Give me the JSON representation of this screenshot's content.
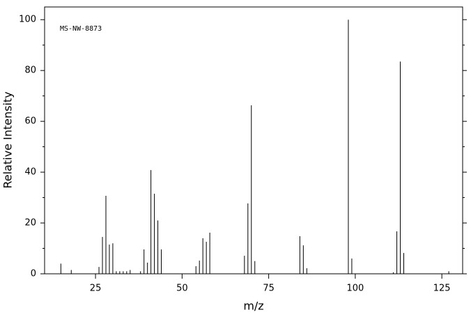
{
  "chart_data": {
    "type": "stem",
    "annotation": "MS-NW-8873",
    "x_label": "m/z",
    "y_label": "Relative Intensity",
    "x": [
      15,
      18,
      26,
      27,
      28,
      29,
      30,
      31,
      32,
      33,
      34,
      35,
      38,
      39,
      40,
      41,
      42,
      43,
      44,
      54,
      55,
      56,
      57,
      58,
      68,
      69,
      70,
      71,
      84,
      85,
      86,
      98,
      99,
      111,
      112,
      113,
      114,
      127
    ],
    "values": [
      4,
      1.5,
      2.7,
      14.5,
      30.7,
      11.5,
      12,
      1,
      1,
      1,
      1,
      1.5,
      1,
      9.6,
      4.4,
      40.8,
      31.5,
      21,
      9.6,
      3,
      5.2,
      14,
      12.6,
      16.2,
      7.1,
      27.7,
      66.3,
      5,
      14.8,
      11.2,
      2.2,
      100,
      6,
      0.6,
      16.7,
      83.5,
      8.2,
      1
    ],
    "color": "#000000",
    "xlim": [
      10.3,
      131
    ],
    "ylim": [
      0,
      105
    ],
    "xticks": [
      25,
      50,
      75,
      100,
      125
    ],
    "yticks": [
      0,
      20,
      40,
      60,
      80,
      100
    ],
    "yminorticks": [
      10,
      30,
      50,
      70,
      90
    ]
  }
}
